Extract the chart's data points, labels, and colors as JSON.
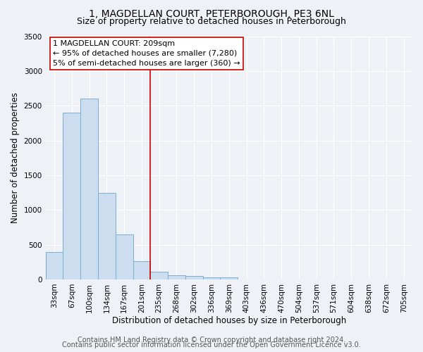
{
  "title": "1, MAGDELLAN COURT, PETERBOROUGH, PE3 6NL",
  "subtitle": "Size of property relative to detached houses in Peterborough",
  "xlabel": "Distribution of detached houses by size in Peterborough",
  "ylabel": "Number of detached properties",
  "categories": [
    "33sqm",
    "67sqm",
    "100sqm",
    "134sqm",
    "167sqm",
    "201sqm",
    "235sqm",
    "268sqm",
    "302sqm",
    "336sqm",
    "369sqm",
    "403sqm",
    "436sqm",
    "470sqm",
    "504sqm",
    "537sqm",
    "571sqm",
    "604sqm",
    "638sqm",
    "672sqm",
    "705sqm"
  ],
  "values": [
    390,
    2400,
    2600,
    1250,
    650,
    260,
    110,
    60,
    50,
    35,
    30,
    0,
    0,
    0,
    0,
    0,
    0,
    0,
    0,
    0,
    0
  ],
  "bar_color": "#ccddef",
  "bar_edge_color": "#7aafd4",
  "vline_x": 5.5,
  "annotation_text": "1 MAGDELLAN COURT: 209sqm\n← 95% of detached houses are smaller (7,280)\n5% of semi-detached houses are larger (360) →",
  "annotation_box_facecolor": "#ffffff",
  "annotation_box_edgecolor": "#cc0000",
  "vline_color": "#cc0000",
  "ylim": [
    0,
    3500
  ],
  "yticks": [
    0,
    500,
    1000,
    1500,
    2000,
    2500,
    3000,
    3500
  ],
  "footer_line1": "Contains HM Land Registry data © Crown copyright and database right 2024.",
  "footer_line2": "Contains public sector information licensed under the Open Government Licence v3.0.",
  "bg_color": "#eef2f7",
  "plot_bg_color": "#eef2f7",
  "title_fontsize": 10,
  "subtitle_fontsize": 9,
  "axis_label_fontsize": 8.5,
  "tick_fontsize": 7.5,
  "footer_fontsize": 7,
  "annotation_fontsize": 8
}
